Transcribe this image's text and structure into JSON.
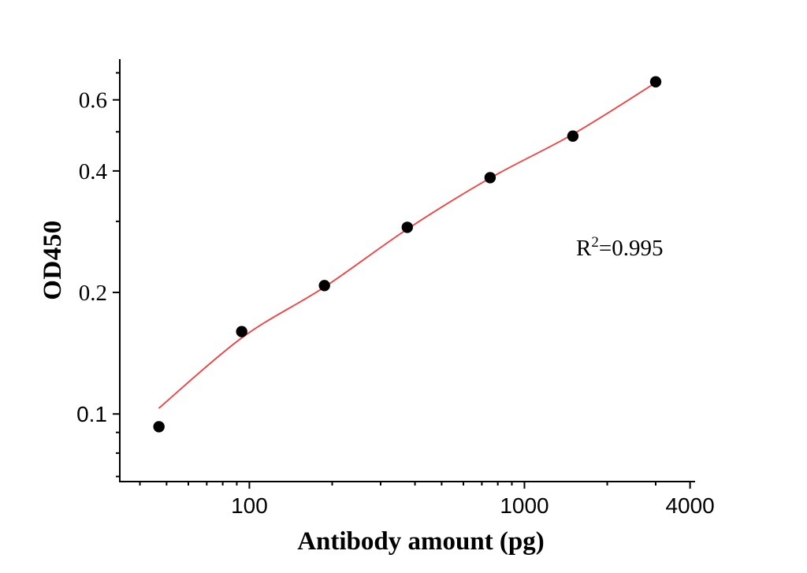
{
  "chart_data": {
    "type": "scatter",
    "title": "",
    "xlabel": "Antibody amount (pg)",
    "ylabel": "OD450",
    "x_scale": "log",
    "y_scale": "log",
    "x_range": [
      33.8,
      4172
    ],
    "y_range": [
      0.068,
      0.757
    ],
    "grid": false,
    "legend_position": "none",
    "x_ticks_major": [
      {
        "value": 100,
        "label": "100"
      },
      {
        "value": 1000,
        "label": "1000"
      },
      {
        "value": 4000,
        "label": "4000"
      }
    ],
    "x_ticks_minor": [
      40,
      50,
      60,
      70,
      80,
      90,
      200,
      300,
      400,
      500,
      600,
      700,
      800,
      900,
      2000,
      3000
    ],
    "y_ticks_major": [
      {
        "value": 0.6,
        "label": "0.6",
        "label_font": "serif"
      },
      {
        "value": 0.4,
        "label": "0.4",
        "label_font": "serif"
      },
      {
        "value": 0.2,
        "label": "0.2",
        "label_font": "serif"
      },
      {
        "value": 0.1,
        "label": "0.1",
        "label_font": "sans"
      }
    ],
    "y_ticks_minor": [
      0.7,
      0.5,
      0.3,
      0.09,
      0.08,
      0.07
    ],
    "series": [
      {
        "name": "measured-od",
        "type": "scatter",
        "marker": "circle",
        "marker_radius": 7.2,
        "color": "#000000",
        "points": [
          {
            "x": 46.9,
            "od": 0.093
          },
          {
            "x": 93.8,
            "od": 0.16
          },
          {
            "x": 187.5,
            "od": 0.208
          },
          {
            "x": 375,
            "od": 0.29
          },
          {
            "x": 750,
            "od": 0.385
          },
          {
            "x": 1500,
            "od": 0.488
          },
          {
            "x": 3000,
            "od": 0.665
          }
        ]
      },
      {
        "name": "fit-curve",
        "type": "line",
        "color": "#f73b3b",
        "width": 1.8,
        "points": [
          {
            "x": 47,
            "od": 0.1035
          },
          {
            "x": 94,
            "od": 0.1545
          },
          {
            "x": 187,
            "od": 0.206
          },
          {
            "x": 375,
            "od": 0.287
          },
          {
            "x": 750,
            "od": 0.384
          },
          {
            "x": 1500,
            "od": 0.493
          },
          {
            "x": 2950,
            "od": 0.657
          }
        ]
      }
    ],
    "annotation": {
      "base": "R",
      "sup": "2",
      "rest": "=0.995"
    }
  },
  "colors": {
    "axis": "#000000",
    "marker": "#000000",
    "curve": "#f73b3b",
    "background": "#ffffff",
    "text": "#000000"
  }
}
